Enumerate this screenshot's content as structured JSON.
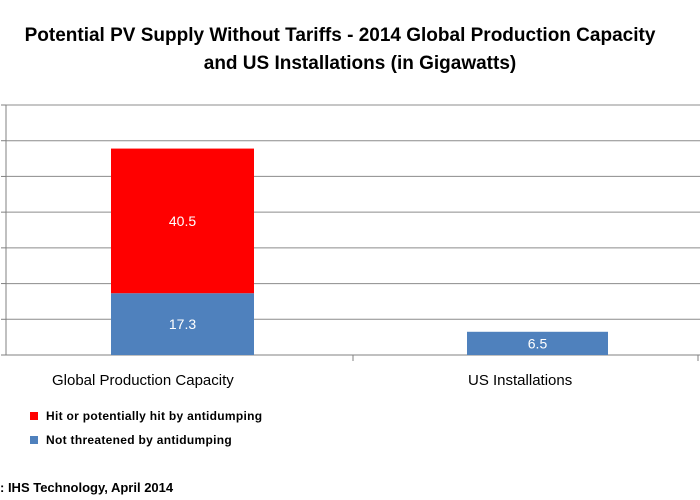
{
  "chart_data": {
    "type": "bar",
    "stacked": true,
    "title_line1": "Potential PV Supply Without Tariffs - 2014 Global Production Capacity",
    "title_line2": "and US Installations (in Gigawatts)",
    "categories": [
      "Global Production Capacity",
      "US Installations"
    ],
    "series": [
      {
        "name": "Not threatened by antidumping",
        "color": "#4f81bd",
        "values": [
          17.3,
          6.5
        ]
      },
      {
        "name": "Hit or potentially hit by antidumping",
        "color": "#ff0000",
        "values": [
          40.5,
          null
        ]
      }
    ],
    "ylim": [
      0,
      70
    ],
    "grid": true,
    "legend": "bottom-left",
    "source": ": IHS Technology, April 2014"
  }
}
